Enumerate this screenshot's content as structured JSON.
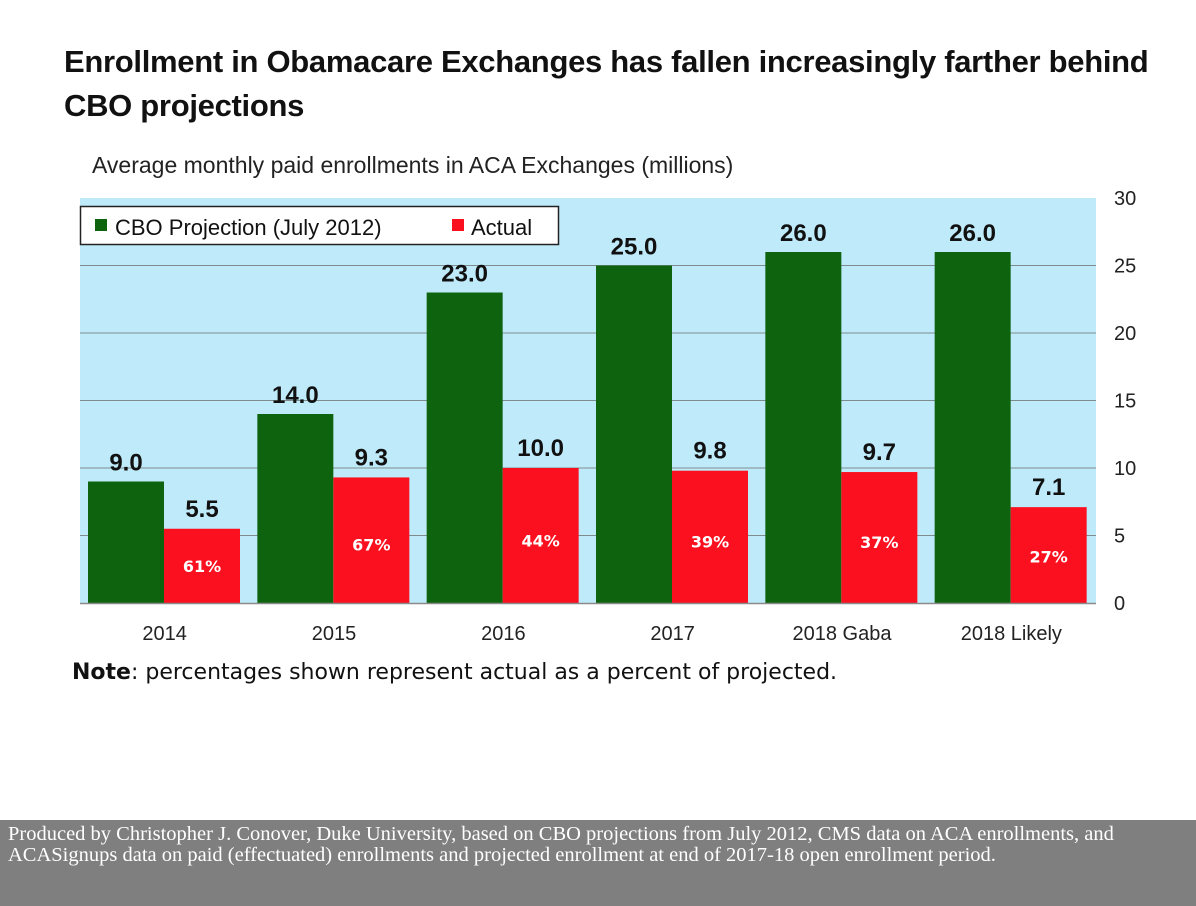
{
  "title": "Enrollment in Obamacare Exchanges has fallen increasingly farther behind CBO projections",
  "subtitle": "Average monthly paid enrollments in ACA Exchanges (millions)",
  "note": {
    "label": "Note",
    "text": ": percentages shown represent actual as a percent of projected."
  },
  "footer": "Produced by Christopher J. Conover, Duke University, based on CBO projections from July 2012, CMS data on ACA enrollments, and ACASignups data on paid (effectuated) enrollments and projected enrollment at end of 2017-18 open enrollment period.",
  "colors": {
    "plot_bg": "#bfeafa",
    "cbo": "#0e640e",
    "actual": "#fa101e"
  },
  "chart_data": {
    "type": "bar",
    "categories": [
      "2014",
      "2015",
      "2016",
      "2017",
      "2018 Gaba",
      "2018 Likely"
    ],
    "series": [
      {
        "name": "CBO Projection (July 2012)",
        "values": [
          9.0,
          14.0,
          23.0,
          25.0,
          26.0,
          26.0
        ],
        "labels": [
          "9.0",
          "14.0",
          "23.0",
          "25.0",
          "26.0",
          "26.0"
        ]
      },
      {
        "name": "Actual",
        "values": [
          5.5,
          9.3,
          10.0,
          9.8,
          9.7,
          7.1
        ],
        "labels": [
          "5.5",
          "9.3",
          "10.0",
          "9.8",
          "9.7",
          "7.1"
        ],
        "pct_labels": [
          "61%",
          "67%",
          "44%",
          "39%",
          "37%",
          "27%"
        ]
      }
    ],
    "ylim": [
      0,
      30
    ],
    "yticks": [
      "0",
      "5",
      "10",
      "15",
      "20",
      "25",
      "30"
    ],
    "yaxis_side": "right",
    "grid": true,
    "legend": "top-left"
  }
}
